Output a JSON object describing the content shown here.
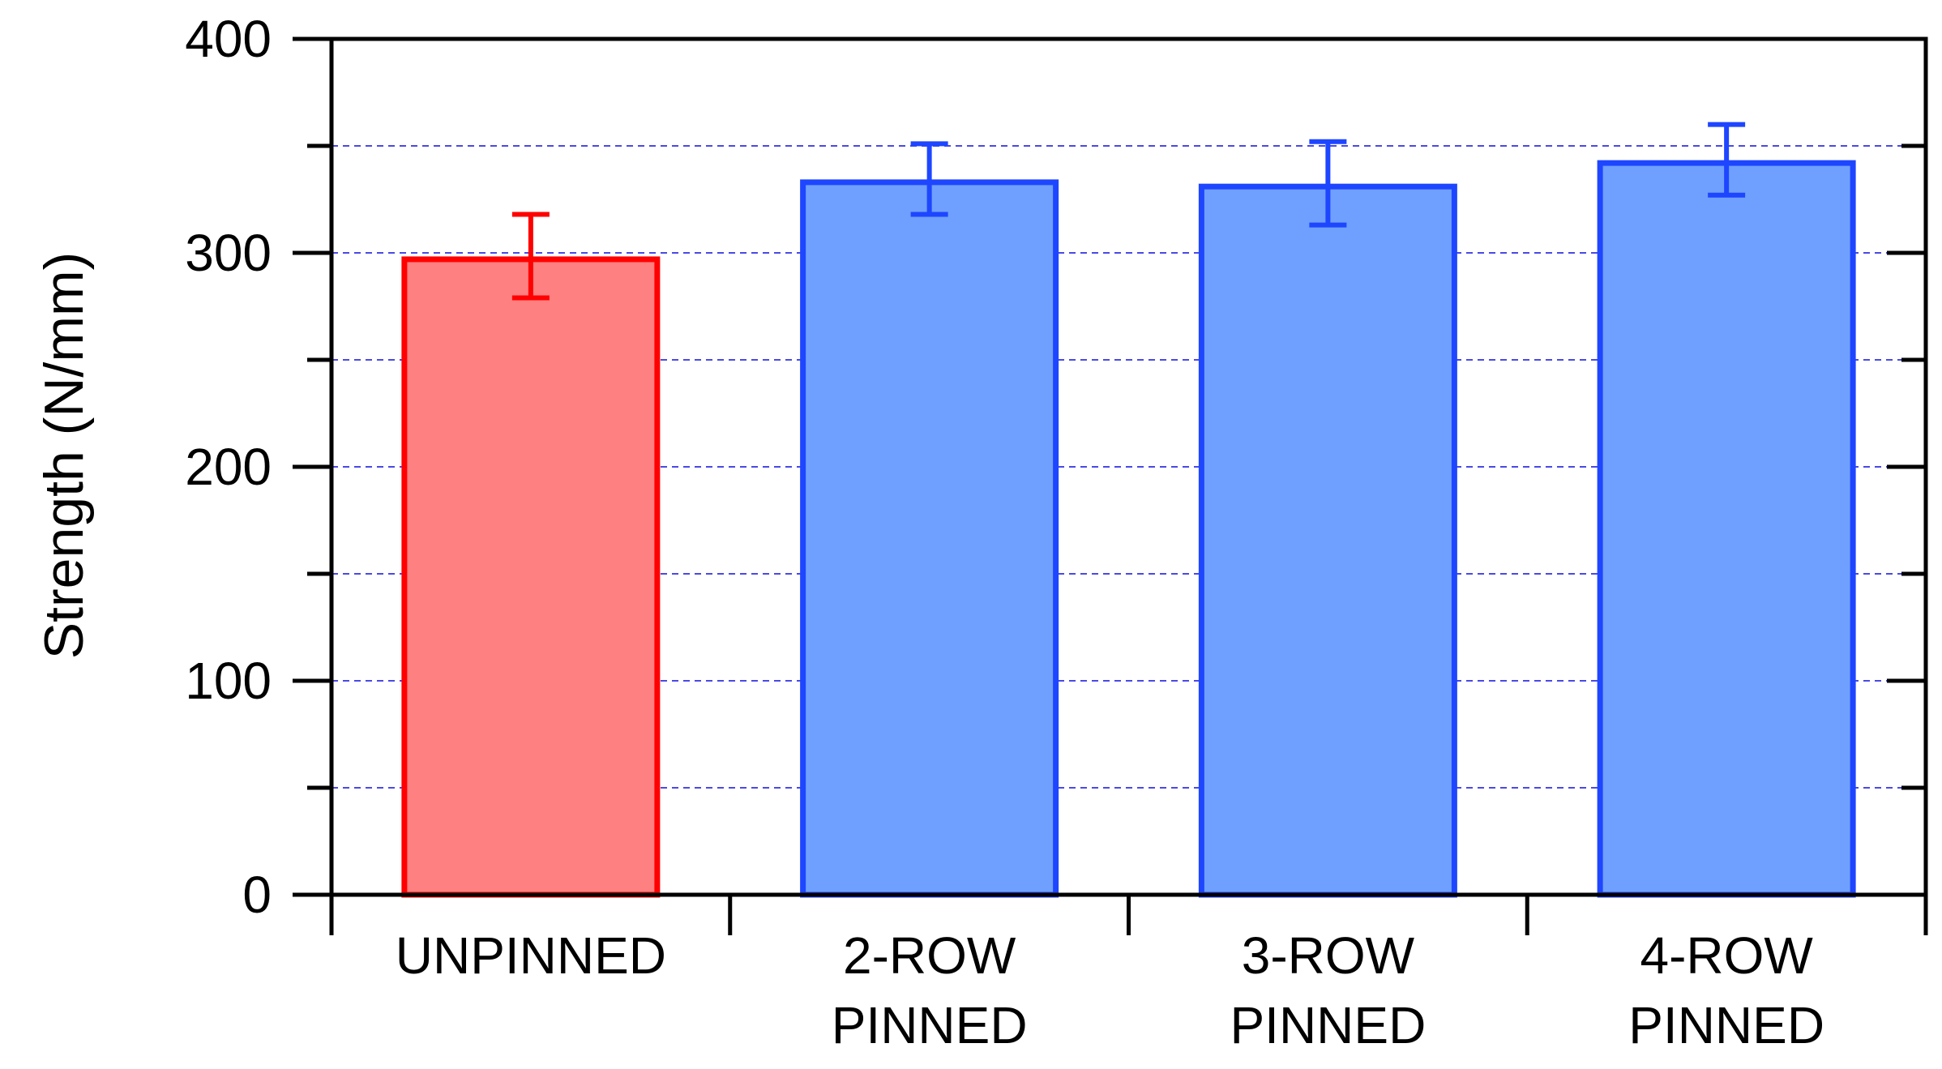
{
  "chart_data": {
    "type": "bar",
    "title": "",
    "xlabel": "",
    "ylabel": "Strength (N/mm)",
    "ylim": [
      0,
      400
    ],
    "yticks": [
      0,
      100,
      200,
      300,
      400
    ],
    "yticks_minor": [
      50,
      150,
      250,
      350
    ],
    "grid": "dashed horizontal at 50-unit intervals",
    "categories": [
      {
        "line1": "UNPINNED",
        "line2": ""
      },
      {
        "line1": "2-ROW",
        "line2": "PINNED"
      },
      {
        "line1": "3-ROW",
        "line2": "PINNED"
      },
      {
        "line1": "4-ROW",
        "line2": "PINNED"
      }
    ],
    "values": [
      297,
      333,
      331,
      342
    ],
    "error_low": [
      279,
      318,
      313,
      327
    ],
    "error_high": [
      318,
      351,
      352,
      360
    ],
    "colors": {
      "fill": [
        "#FF8080",
        "#6FA0FF",
        "#6FA0FF",
        "#6FA0FF"
      ],
      "stroke": [
        "#FF0000",
        "#1E46FF",
        "#1E46FF",
        "#1E46FF"
      ],
      "grid": "#4A4AE6",
      "axis": "#000000"
    }
  }
}
